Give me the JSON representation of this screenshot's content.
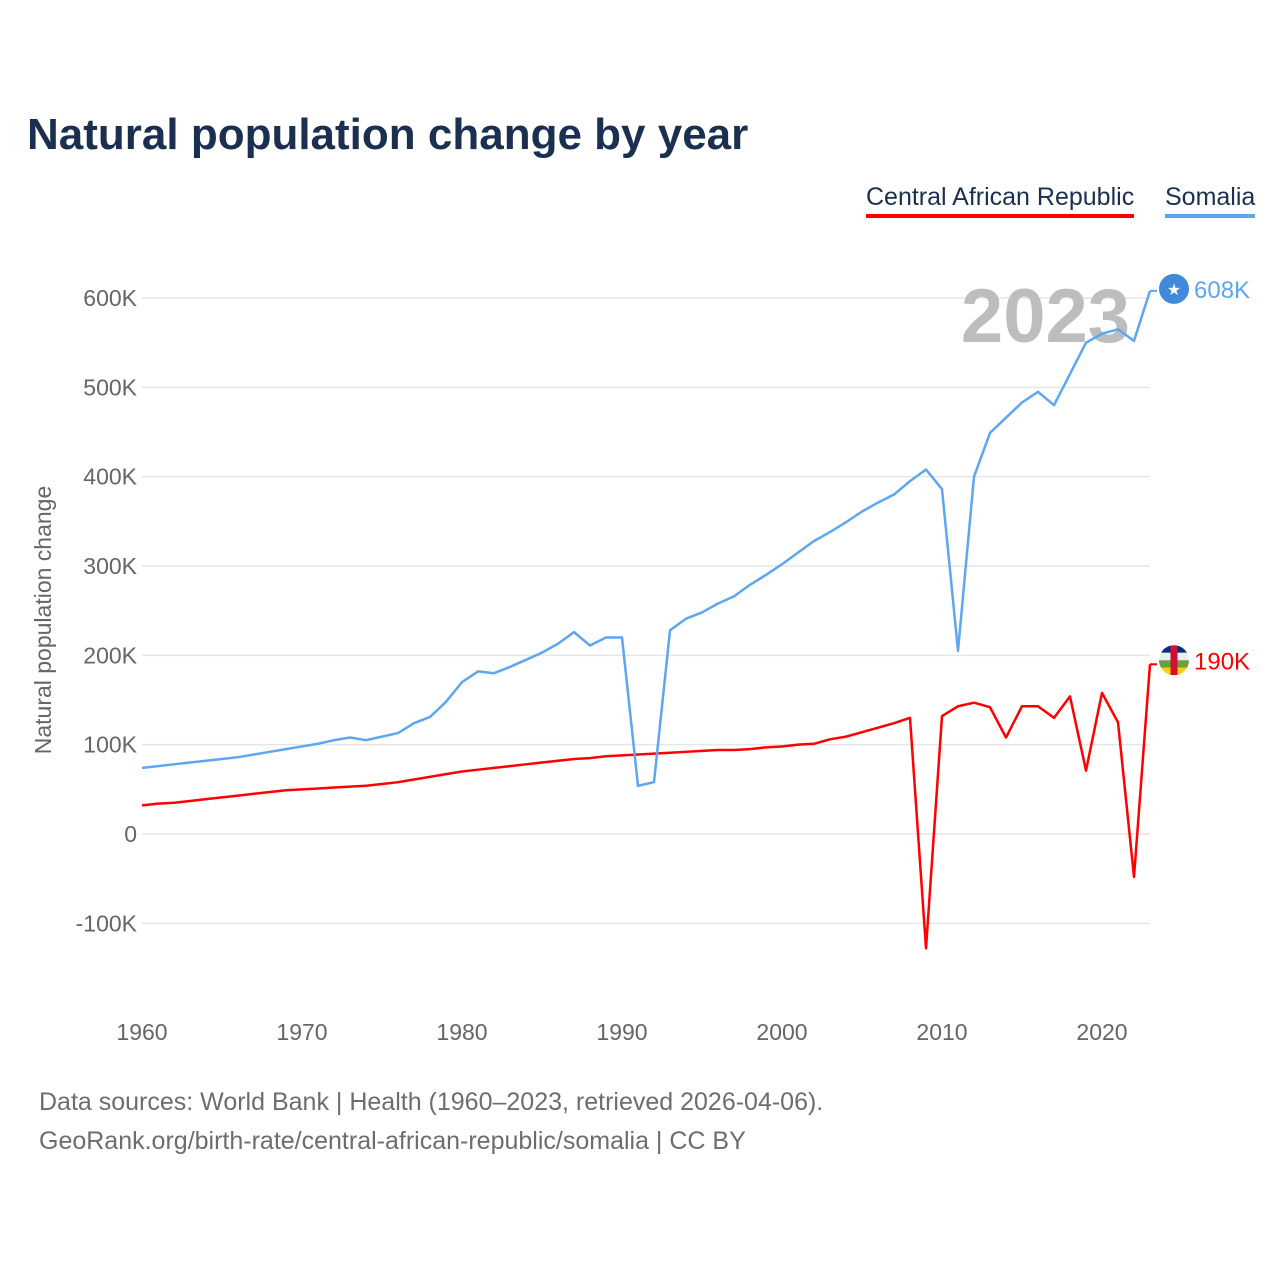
{
  "chart_data": {
    "type": "line",
    "title": "Natural population change by year",
    "xlabel": "",
    "ylabel": "Natural population change",
    "xlim": [
      1960,
      2023
    ],
    "ylim": [
      -190000,
      640000
    ],
    "x_ticks": [
      1960,
      1970,
      1980,
      1990,
      2000,
      2010,
      2020
    ],
    "x_tick_labels": [
      "1960",
      "1970",
      "1980",
      "1990",
      "2000",
      "2010",
      "2020"
    ],
    "y_ticks": [
      -100000,
      0,
      100000,
      200000,
      300000,
      400000,
      500000,
      600000
    ],
    "y_tick_labels": [
      "-100K",
      "0",
      "100K",
      "200K",
      "300K",
      "400K",
      "500K",
      "600K"
    ],
    "grid": true,
    "legend_position": "top-right",
    "year_watermark": "2023",
    "x_start": 1960,
    "series": [
      {
        "name": "Central African Republic",
        "color": "#ff0000",
        "end_label": "190K",
        "values": [
          32000,
          34000,
          35000,
          37000,
          39000,
          41000,
          43000,
          45000,
          47000,
          49000,
          50000,
          51000,
          52000,
          53000,
          54000,
          56000,
          58000,
          61000,
          64000,
          67000,
          70000,
          72000,
          74000,
          76000,
          78000,
          80000,
          82000,
          84000,
          85000,
          87000,
          88000,
          89000,
          90000,
          91000,
          92000,
          93000,
          94000,
          94000,
          95000,
          97000,
          98000,
          100000,
          101000,
          106000,
          109000,
          114000,
          119000,
          124000,
          130000,
          -128000,
          132000,
          143000,
          147000,
          142000,
          108000,
          143000,
          143000,
          130000,
          154000,
          71000,
          158000,
          125000,
          -48000,
          190000
        ]
      },
      {
        "name": "Somalia",
        "color": "#5ca7ef",
        "end_label": "608K",
        "values": [
          74000,
          76000,
          78000,
          80000,
          82000,
          84000,
          86000,
          89000,
          92000,
          95000,
          98000,
          101000,
          105000,
          108000,
          105000,
          109000,
          113000,
          124000,
          131000,
          148000,
          170000,
          182000,
          180000,
          187000,
          195000,
          203000,
          213000,
          226000,
          211000,
          220000,
          220000,
          54000,
          58000,
          228000,
          241000,
          248000,
          258000,
          266000,
          279000,
          290000,
          302000,
          315000,
          328000,
          338000,
          349000,
          361000,
          371000,
          380000,
          395000,
          408000,
          386000,
          205000,
          400000,
          449000,
          466000,
          483000,
          495000,
          480000,
          515000,
          550000,
          560000,
          565000,
          552000,
          608000
        ]
      }
    ]
  },
  "footer": {
    "line1": "Data sources: World Bank | Health (1960–2023, retrieved 2026-04-06).",
    "line2": "GeoRank.org/birth-rate/central-african-republic/somalia | CC BY"
  }
}
